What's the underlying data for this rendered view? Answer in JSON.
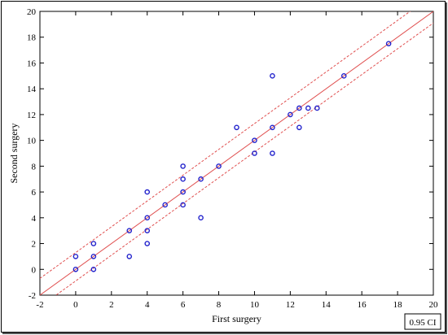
{
  "chart_data": {
    "type": "scatter",
    "title": "",
    "xlabel": "First surgery",
    "ylabel": "Second surgery",
    "xlim": [
      -2,
      20
    ],
    "ylim": [
      -2,
      20
    ],
    "x_ticks": [
      -2,
      0,
      2,
      4,
      6,
      8,
      10,
      12,
      14,
      16,
      18,
      20
    ],
    "y_ticks": [
      -2,
      0,
      2,
      4,
      6,
      8,
      10,
      12,
      14,
      16,
      18,
      20
    ],
    "grid": false,
    "legend_text": "0.95 CI",
    "legend_position": "bottom-right",
    "regression": {
      "slope": 1.0,
      "intercept": 0.0,
      "ci_band": [
        -0.9,
        1.3
      ]
    },
    "points": [
      {
        "x": 0,
        "y": 0
      },
      {
        "x": 0,
        "y": 1
      },
      {
        "x": 1,
        "y": 0
      },
      {
        "x": 1,
        "y": 1
      },
      {
        "x": 1,
        "y": 2
      },
      {
        "x": 3,
        "y": 1
      },
      {
        "x": 3,
        "y": 3
      },
      {
        "x": 4,
        "y": 2
      },
      {
        "x": 4,
        "y": 3
      },
      {
        "x": 4,
        "y": 4
      },
      {
        "x": 4,
        "y": 6
      },
      {
        "x": 5,
        "y": 5
      },
      {
        "x": 6,
        "y": 5
      },
      {
        "x": 6,
        "y": 6
      },
      {
        "x": 6,
        "y": 7
      },
      {
        "x": 6,
        "y": 8
      },
      {
        "x": 7,
        "y": 4
      },
      {
        "x": 7,
        "y": 7
      },
      {
        "x": 8,
        "y": 8
      },
      {
        "x": 9,
        "y": 11
      },
      {
        "x": 10,
        "y": 9
      },
      {
        "x": 10,
        "y": 10
      },
      {
        "x": 11,
        "y": 9
      },
      {
        "x": 11,
        "y": 11
      },
      {
        "x": 11,
        "y": 15
      },
      {
        "x": 12,
        "y": 12
      },
      {
        "x": 12.5,
        "y": 11
      },
      {
        "x": 12.5,
        "y": 12.5
      },
      {
        "x": 13,
        "y": 12.5
      },
      {
        "x": 13.5,
        "y": 12.5
      },
      {
        "x": 15,
        "y": 15
      },
      {
        "x": 17.5,
        "y": 17.5
      }
    ],
    "colors": {
      "points": "#2222cc",
      "fit": "#e05050",
      "ci": "#e05050",
      "axis": "#000000"
    }
  }
}
